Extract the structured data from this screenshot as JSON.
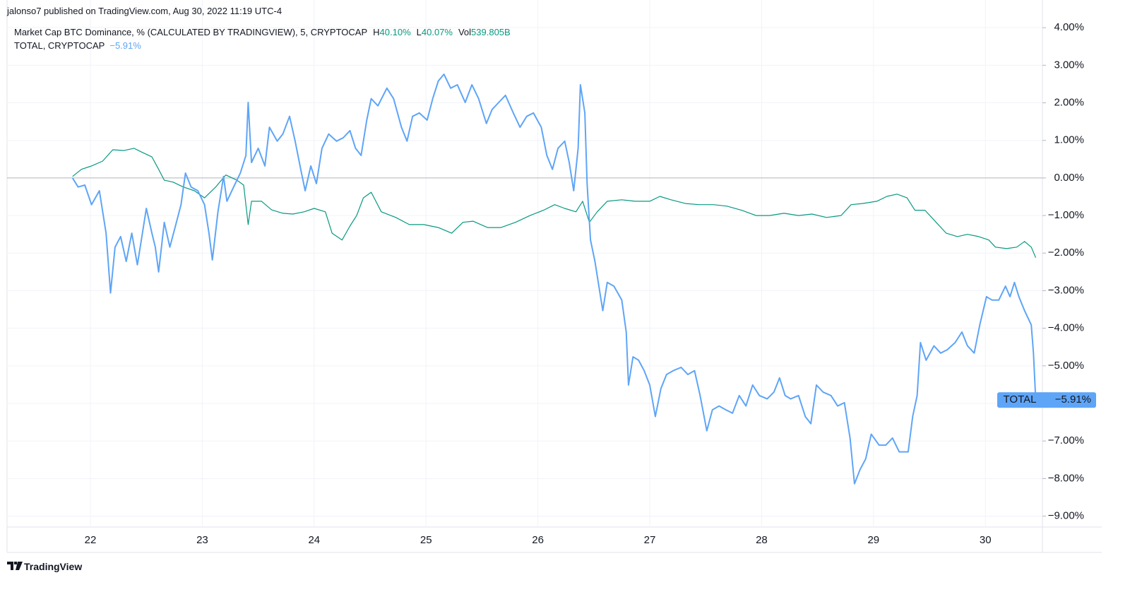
{
  "header": "jalonso7 published on TradingView.com, Aug 30, 2022 11:19 UTC-4",
  "footer": "TradingView",
  "chart_data": {
    "type": "line",
    "xlim": [
      21.255,
      30.51
    ],
    "ylim": [
      -9.29,
      4.21
    ],
    "xticks": [
      22,
      23,
      24,
      25,
      26,
      27,
      28,
      29,
      30
    ],
    "yticks": [
      {
        "value": 4,
        "label": "4.00%"
      },
      {
        "value": 3,
        "label": "3.00%"
      },
      {
        "value": 2,
        "label": "2.00%"
      },
      {
        "value": 1,
        "label": "1.00%"
      },
      {
        "value": 0,
        "label": "0.00%"
      },
      {
        "value": -1,
        "label": "−1.00%"
      },
      {
        "value": -2,
        "label": "−2.00%"
      },
      {
        "value": -3,
        "label": "−3.00%"
      },
      {
        "value": -4,
        "label": "−4.00%"
      },
      {
        "value": -5,
        "label": "−5.00%"
      },
      {
        "value": -6,
        "label": "−6.00%"
      },
      {
        "value": -7,
        "label": "−7.00%"
      },
      {
        "value": -8,
        "label": "−8.00%"
      },
      {
        "value": -9,
        "label": "−9.00%"
      }
    ],
    "grid": true,
    "legend_stats": [
      {
        "label": "H",
        "value": "40.10%"
      },
      {
        "label": "L",
        "value": "40.07%"
      },
      {
        "label": "Vol",
        "value": "539.805B"
      }
    ],
    "series": [
      {
        "name": "Market Cap BTC Dominance, % (CALCULATED BY TRADINGVIEW), 5, CRYPTOCAP",
        "color": "#089981",
        "x": [
          21.84,
          21.92,
          22.01,
          22.11,
          22.2,
          22.3,
          22.39,
          22.45,
          22.55,
          22.61,
          22.66,
          22.74,
          22.83,
          22.93,
          23.02,
          23.12,
          23.21,
          23.31,
          23.37,
          23.41,
          23.44,
          23.53,
          23.62,
          23.72,
          23.81,
          23.91,
          24.0,
          24.1,
          24.16,
          24.25,
          24.32,
          24.38,
          24.44,
          24.51,
          24.6,
          24.73,
          24.85,
          24.98,
          25.11,
          25.23,
          25.33,
          25.42,
          25.55,
          25.67,
          25.8,
          25.93,
          26.05,
          26.15,
          26.24,
          26.34,
          26.4,
          26.46,
          26.53,
          26.62,
          26.75,
          26.87,
          27.0,
          27.09,
          27.19,
          27.32,
          27.44,
          27.57,
          27.69,
          27.82,
          27.95,
          28.07,
          28.2,
          28.33,
          28.45,
          28.58,
          28.71,
          28.8,
          28.9,
          29.03,
          29.12,
          29.21,
          29.3,
          29.37,
          29.46,
          29.56,
          29.65,
          29.75,
          29.84,
          29.94,
          30.03,
          30.09,
          30.19,
          30.28,
          30.35,
          30.41,
          30.45
        ],
        "values": [
          0.04,
          0.23,
          0.32,
          0.45,
          0.75,
          0.73,
          0.79,
          0.7,
          0.56,
          0.23,
          -0.06,
          -0.11,
          -0.24,
          -0.34,
          -0.53,
          -0.24,
          0.08,
          -0.06,
          -0.19,
          -1.24,
          -0.62,
          -0.62,
          -0.85,
          -0.94,
          -0.96,
          -0.9,
          -0.81,
          -0.9,
          -1.47,
          -1.65,
          -1.28,
          -1.0,
          -0.53,
          -0.38,
          -0.9,
          -1.05,
          -1.24,
          -1.24,
          -1.32,
          -1.47,
          -1.18,
          -1.15,
          -1.32,
          -1.32,
          -1.18,
          -1.0,
          -0.86,
          -0.71,
          -0.81,
          -0.9,
          -0.62,
          -1.18,
          -0.9,
          -0.62,
          -0.58,
          -0.62,
          -0.62,
          -0.49,
          -0.58,
          -0.68,
          -0.71,
          -0.71,
          -0.75,
          -0.86,
          -1.0,
          -1.0,
          -0.94,
          -1.0,
          -0.96,
          -1.05,
          -1.0,
          -0.71,
          -0.68,
          -0.62,
          -0.49,
          -0.43,
          -0.53,
          -0.86,
          -0.86,
          -1.18,
          -1.47,
          -1.56,
          -1.5,
          -1.56,
          -1.65,
          -1.84,
          -1.88,
          -1.84,
          -1.69,
          -1.84,
          -2.12
        ]
      },
      {
        "name": "TOTAL, CRYPTOCAP",
        "color": "#5ea5f7",
        "label": "TOTAL",
        "last_value_label": "−5.91%",
        "x": [
          21.84,
          21.89,
          21.95,
          22.01,
          22.08,
          22.14,
          22.18,
          22.22,
          22.27,
          22.32,
          22.37,
          22.42,
          22.45,
          22.5,
          22.55,
          22.58,
          22.61,
          22.66,
          22.71,
          22.76,
          22.81,
          22.85,
          22.9,
          22.96,
          23.02,
          23.06,
          23.09,
          23.14,
          23.19,
          23.22,
          23.28,
          23.34,
          23.39,
          23.41,
          23.44,
          23.5,
          23.56,
          23.6,
          23.67,
          23.72,
          23.78,
          23.83,
          23.88,
          23.92,
          23.97,
          24.02,
          24.07,
          24.13,
          24.2,
          24.26,
          24.32,
          24.37,
          24.42,
          24.47,
          24.51,
          24.57,
          24.65,
          24.71,
          24.78,
          24.83,
          24.88,
          24.94,
          25.01,
          25.06,
          25.11,
          25.16,
          25.22,
          25.28,
          25.35,
          25.41,
          25.47,
          25.54,
          25.59,
          25.65,
          25.71,
          25.78,
          25.84,
          25.9,
          25.96,
          26.03,
          26.08,
          26.13,
          26.18,
          26.24,
          26.28,
          26.32,
          26.36,
          26.38,
          26.42,
          26.44,
          26.47,
          26.51,
          26.55,
          26.58,
          26.62,
          26.68,
          26.75,
          26.79,
          26.81,
          26.85,
          26.9,
          26.95,
          27.0,
          27.05,
          27.1,
          27.15,
          27.21,
          27.28,
          27.34,
          27.4,
          27.45,
          27.51,
          27.56,
          27.62,
          27.68,
          27.74,
          27.8,
          27.86,
          27.92,
          27.98,
          28.05,
          28.11,
          28.16,
          28.21,
          28.26,
          28.33,
          28.39,
          28.44,
          28.49,
          28.55,
          28.62,
          28.68,
          28.74,
          28.79,
          28.83,
          28.88,
          28.93,
          28.98,
          29.05,
          29.11,
          29.17,
          29.23,
          29.31,
          29.35,
          29.39,
          29.42,
          29.47,
          29.54,
          29.6,
          29.66,
          29.73,
          29.79,
          29.84,
          29.9,
          29.95,
          30.01,
          30.06,
          30.12,
          30.18,
          30.22,
          30.26,
          30.3,
          30.35,
          30.41,
          30.43,
          30.45
        ],
        "values": [
          0.0,
          -0.24,
          -0.19,
          -0.71,
          -0.34,
          -1.47,
          -3.06,
          -1.84,
          -1.56,
          -2.22,
          -1.47,
          -2.31,
          -1.75,
          -0.81,
          -1.47,
          -1.84,
          -2.5,
          -1.18,
          -1.84,
          -1.28,
          -0.71,
          0.13,
          -0.24,
          -0.34,
          -0.71,
          -1.47,
          -2.18,
          -0.9,
          0.04,
          -0.62,
          -0.24,
          0.13,
          0.6,
          2.01,
          0.41,
          0.79,
          0.32,
          1.35,
          0.98,
          1.17,
          1.64,
          0.98,
          0.23,
          -0.34,
          0.32,
          -0.15,
          0.79,
          1.17,
          0.98,
          1.07,
          1.26,
          0.79,
          0.6,
          1.54,
          2.11,
          1.92,
          2.39,
          2.11,
          1.35,
          0.98,
          1.64,
          1.73,
          1.54,
          2.11,
          2.58,
          2.76,
          2.39,
          2.48,
          2.01,
          2.48,
          2.11,
          1.45,
          1.82,
          2.01,
          2.2,
          1.73,
          1.35,
          1.64,
          1.73,
          1.35,
          0.6,
          0.23,
          0.79,
          0.98,
          0.41,
          -0.34,
          0.79,
          2.48,
          1.73,
          -0.15,
          -1.65,
          -2.22,
          -2.97,
          -3.53,
          -2.78,
          -2.88,
          -3.25,
          -4.1,
          -5.51,
          -4.76,
          -4.85,
          -5.13,
          -5.51,
          -6.35,
          -5.6,
          -5.23,
          -5.13,
          -5.04,
          -5.23,
          -5.13,
          -5.79,
          -6.73,
          -6.17,
          -6.07,
          -6.17,
          -6.26,
          -5.79,
          -6.07,
          -5.51,
          -5.79,
          -5.88,
          -5.7,
          -5.32,
          -5.79,
          -5.88,
          -5.79,
          -6.35,
          -6.54,
          -5.51,
          -5.7,
          -5.79,
          -6.07,
          -5.98,
          -6.92,
          -8.14,
          -7.76,
          -7.48,
          -6.82,
          -7.11,
          -7.11,
          -6.92,
          -7.29,
          -7.29,
          -6.35,
          -5.79,
          -4.38,
          -4.85,
          -4.47,
          -4.66,
          -4.57,
          -4.38,
          -4.1,
          -4.47,
          -4.66,
          -3.91,
          -3.16,
          -3.25,
          -3.25,
          -2.88,
          -3.16,
          -2.78,
          -3.16,
          -3.53,
          -3.91,
          -4.66,
          -5.91
        ]
      }
    ]
  }
}
